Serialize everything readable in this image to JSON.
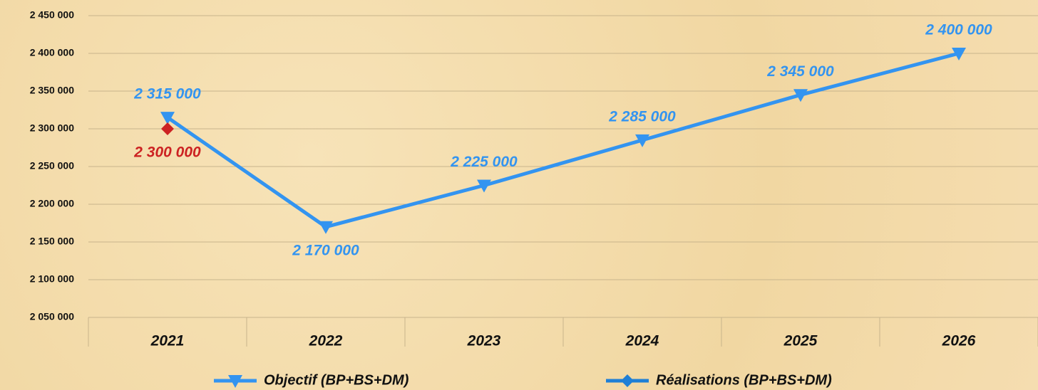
{
  "chart_data": {
    "type": "line",
    "categories": [
      "2021",
      "2022",
      "2023",
      "2024",
      "2025",
      "2026"
    ],
    "series": [
      {
        "name": "Objectif (BP+BS+DM)",
        "color": "#3394f0",
        "marker": "triangle-down",
        "values": [
          2315000,
          2170000,
          2225000,
          2285000,
          2345000,
          2400000
        ],
        "value_labels": [
          "2 315 000",
          "2 170 000",
          "2 225 000",
          "2 285 000",
          "2 345 000",
          "2 400 000"
        ]
      },
      {
        "name": "Réalisations (BP+BS+DM)",
        "color": "#1f7fd6",
        "marker": "diamond",
        "marker_color": "#cc2222",
        "values": [
          2300000,
          null,
          null,
          null,
          null,
          null
        ],
        "value_labels": [
          "2 300 000",
          null,
          null,
          null,
          null,
          null
        ]
      }
    ],
    "ylim": [
      2050000,
      2450000
    ],
    "yticks": [
      {
        "value": 2050000,
        "label": "2 050 000"
      },
      {
        "value": 2100000,
        "label": "2 100 000"
      },
      {
        "value": 2150000,
        "label": "2 150 000"
      },
      {
        "value": 2200000,
        "label": "2 200 000"
      },
      {
        "value": 2250000,
        "label": "2 250 000"
      },
      {
        "value": 2300000,
        "label": "2 300 000"
      },
      {
        "value": 2350000,
        "label": "2 350 000"
      },
      {
        "value": 2400000,
        "label": "2 400 000"
      },
      {
        "value": 2450000,
        "label": "2 450 000"
      }
    ],
    "grid": true,
    "legend": "bottom"
  }
}
